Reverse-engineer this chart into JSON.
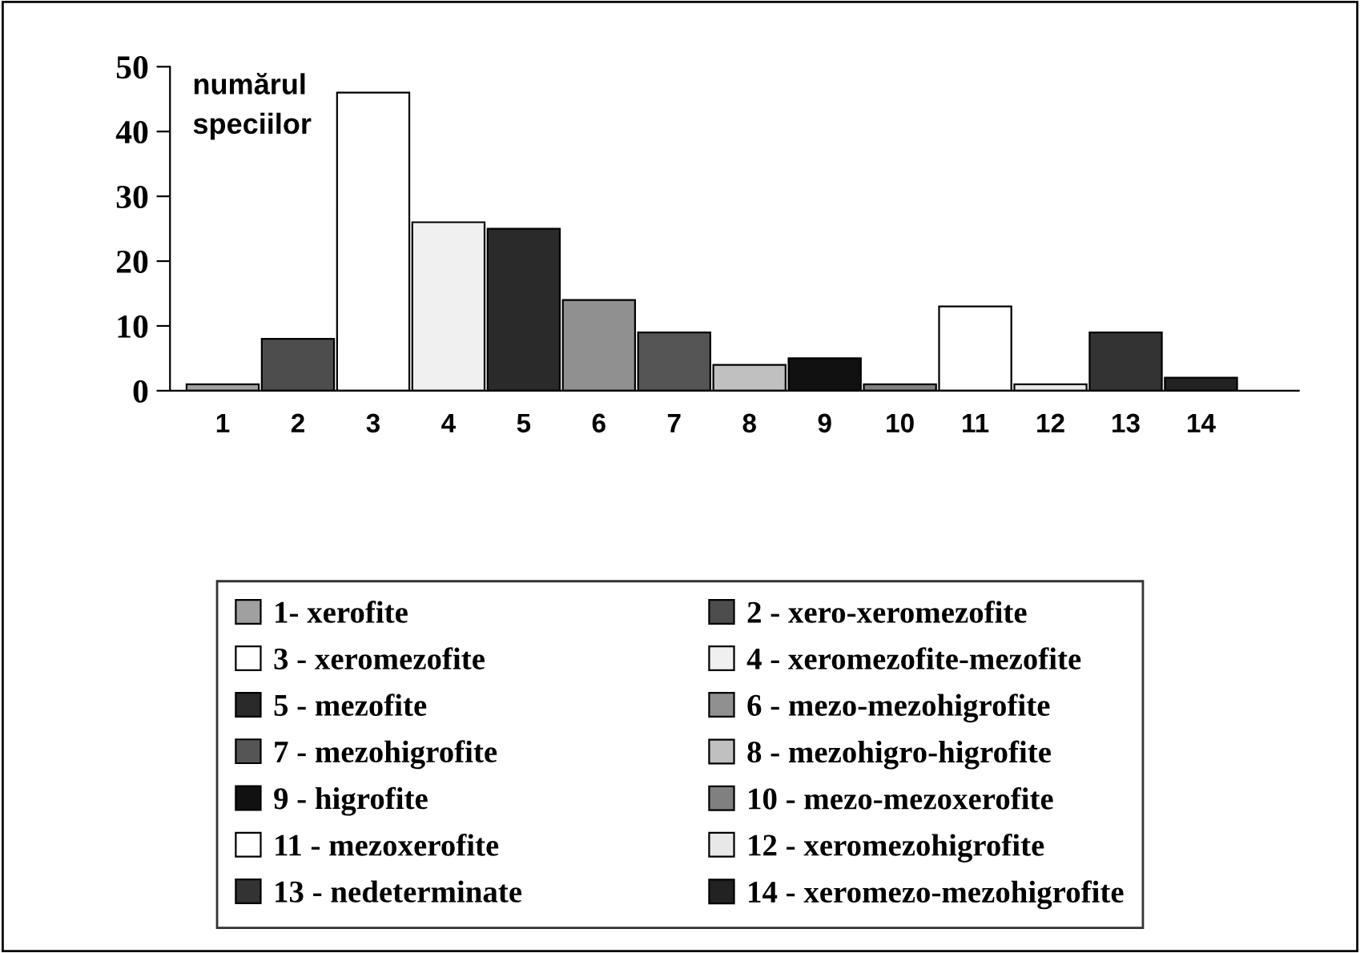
{
  "chart_data": {
    "type": "bar",
    "ylabel": "numărul\nspeciilor",
    "categories": [
      "1",
      "2",
      "3",
      "4",
      "5",
      "6",
      "7",
      "8",
      "9",
      "10",
      "11",
      "12",
      "13",
      "14"
    ],
    "series": [
      {
        "name": "1- xerofite",
        "color": "#a0a0a0",
        "values": [
          1,
          null,
          null,
          null,
          null,
          null,
          null,
          null,
          null,
          null,
          null,
          null,
          null,
          null
        ]
      },
      {
        "name": "2 - xero-xeromezofite",
        "color": "#4d4d4d",
        "values": [
          null,
          8,
          null,
          null,
          null,
          null,
          null,
          null,
          null,
          null,
          null,
          null,
          null,
          null
        ]
      },
      {
        "name": "3 - xeromezofite",
        "color": "#ffffff",
        "values": [
          null,
          null,
          46,
          null,
          null,
          null,
          null,
          null,
          null,
          null,
          null,
          null,
          null,
          null
        ]
      },
      {
        "name": "4 - xeromezofite-mezofite",
        "color": "#f0f0f0",
        "values": [
          null,
          null,
          null,
          26,
          null,
          null,
          null,
          null,
          null,
          null,
          null,
          null,
          null,
          null
        ]
      },
      {
        "name": "5 - mezofite",
        "color": "#2a2a2a",
        "values": [
          null,
          null,
          null,
          null,
          25,
          null,
          null,
          null,
          null,
          null,
          null,
          null,
          null,
          null
        ]
      },
      {
        "name": "6 - mezo-mezohigrofite",
        "color": "#909090",
        "values": [
          null,
          null,
          null,
          null,
          null,
          14,
          null,
          null,
          null,
          null,
          null,
          null,
          null,
          null
        ]
      },
      {
        "name": "7 - mezohigrofite",
        "color": "#555555",
        "values": [
          null,
          null,
          null,
          null,
          null,
          null,
          9,
          null,
          null,
          null,
          null,
          null,
          null,
          null
        ]
      },
      {
        "name": "8 - mezohigro-higrofite",
        "color": "#c0c0c0",
        "values": [
          null,
          null,
          null,
          null,
          null,
          null,
          null,
          4,
          null,
          null,
          null,
          null,
          null,
          null
        ]
      },
      {
        "name": "9 - higrofite",
        "color": "#111111",
        "values": [
          null,
          null,
          null,
          null,
          null,
          null,
          null,
          null,
          5,
          null,
          null,
          null,
          null,
          null
        ]
      },
      {
        "name": "10 - mezo-mezoxerofite",
        "color": "#808080",
        "values": [
          null,
          null,
          null,
          null,
          null,
          null,
          null,
          null,
          null,
          1,
          null,
          null,
          null,
          null
        ]
      },
      {
        "name": "11 - mezoxerofite",
        "color": "#ffffff",
        "values": [
          null,
          null,
          null,
          null,
          null,
          null,
          null,
          null,
          null,
          null,
          13,
          null,
          null,
          null
        ]
      },
      {
        "name": "12 - xeromezohigrofite",
        "color": "#e8e8e8",
        "values": [
          null,
          null,
          null,
          null,
          null,
          null,
          null,
          null,
          null,
          null,
          null,
          1,
          null,
          null
        ]
      },
      {
        "name": "13 - nedeterminate",
        "color": "#333333",
        "values": [
          null,
          null,
          null,
          null,
          null,
          null,
          null,
          null,
          null,
          null,
          null,
          null,
          9,
          null
        ]
      },
      {
        "name": "14 - xeromezo-mezohigrofite",
        "color": "#222222",
        "values": [
          null,
          null,
          null,
          null,
          null,
          null,
          null,
          null,
          null,
          null,
          null,
          null,
          null,
          2
        ]
      }
    ],
    "ylim": [
      0,
      50
    ],
    "yticks": [
      0,
      10,
      20,
      30,
      40,
      50
    ],
    "legend": "bottom",
    "grid": false
  }
}
